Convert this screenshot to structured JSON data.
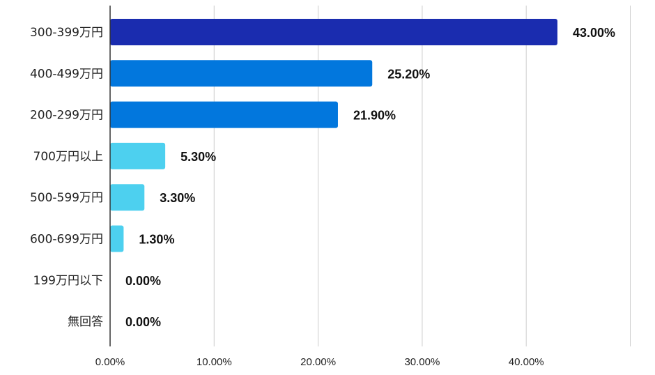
{
  "chart_data": {
    "type": "bar",
    "orientation": "horizontal",
    "title": "",
    "xlabel": "",
    "ylabel": "",
    "categories": [
      "300-399万円",
      "400-499万円",
      "200-299万円",
      "700万円以上",
      "500-599万円",
      "600-699万円",
      "199万円以下",
      "無回答"
    ],
    "values": [
      43.0,
      25.2,
      21.9,
      5.3,
      3.3,
      1.3,
      0.0,
      0.0
    ],
    "value_labels": [
      "43.00%",
      "25.20%",
      "21.90%",
      "5.30%",
      "3.30%",
      "1.30%",
      "0.00%",
      "0.00%"
    ],
    "bar_colors": [
      "#1a2caf",
      "#0277dd",
      "#0277dd",
      "#4dd0ef",
      "#4dd0ef",
      "#4dd0ef",
      "#4dd0ef",
      "#4dd0ef"
    ],
    "xlim": [
      0,
      50
    ],
    "x_ticks": [
      0,
      10,
      20,
      30,
      40,
      50
    ],
    "x_tick_labels": [
      "0.00%",
      "10.00%",
      "20.00%",
      "30.00%",
      "40.00%",
      ""
    ],
    "grid": true,
    "legend": "none"
  }
}
